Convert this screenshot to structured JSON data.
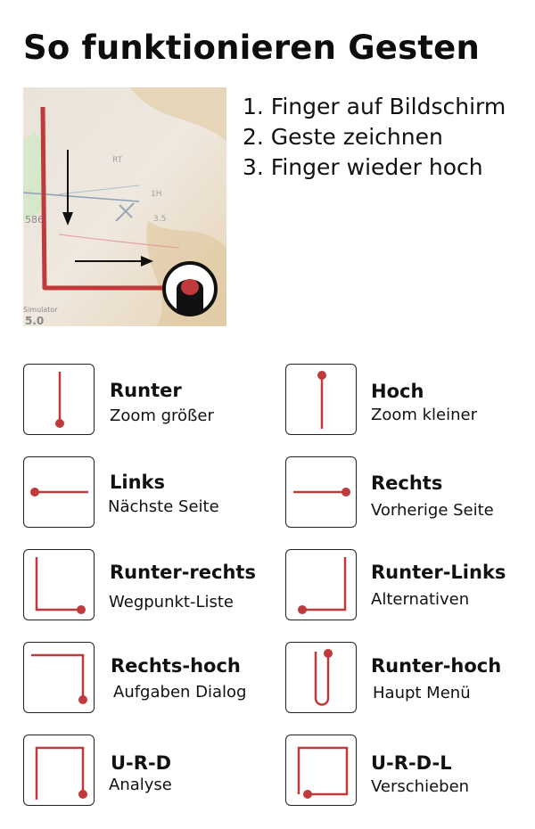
{
  "header": {
    "title": "So funktionieren Gesten"
  },
  "hero": {
    "map_labels": [
      "586",
      "Simulator",
      "5.0",
      "1H",
      "3.5",
      "RT"
    ]
  },
  "steps": [
    "1. Finger auf Bildschirm",
    "2. Geste  zeichnen",
    "3. Finger wieder hoch"
  ],
  "gestures": [
    {
      "name": "Runter",
      "action": "Zoom größer",
      "icon": "gesture-down-icon"
    },
    {
      "name": "Hoch",
      "action": "Zoom kleiner",
      "icon": "gesture-up-icon"
    },
    {
      "name": "Links",
      "action": "Nächste Seite",
      "icon": "gesture-left-icon"
    },
    {
      "name": "Rechts",
      "action": "Vorherige Seite",
      "icon": "gesture-right-icon"
    },
    {
      "name": "Runter-rechts",
      "action": "Wegpunkt-Liste",
      "icon": "gesture-down-right-icon"
    },
    {
      "name": "Runter-Links",
      "action": "Alternativen",
      "icon": "gesture-down-left-icon"
    },
    {
      "name": "Rechts-hoch",
      "action": "Aufgaben Dialog",
      "icon": "gesture-right-up-icon"
    },
    {
      "name": "Runter-hoch",
      "action": "Haupt Menü",
      "icon": "gesture-down-up-icon"
    },
    {
      "name": "U-R-D",
      "action": "Analyse",
      "icon": "gesture-up-right-down-icon"
    },
    {
      "name": "U-R-D-L",
      "action": "Verschieben",
      "icon": "gesture-up-right-down-left-icon"
    }
  ],
  "colors": {
    "stroke": "#c0393b",
    "border": "#222222",
    "text": "#111111"
  }
}
